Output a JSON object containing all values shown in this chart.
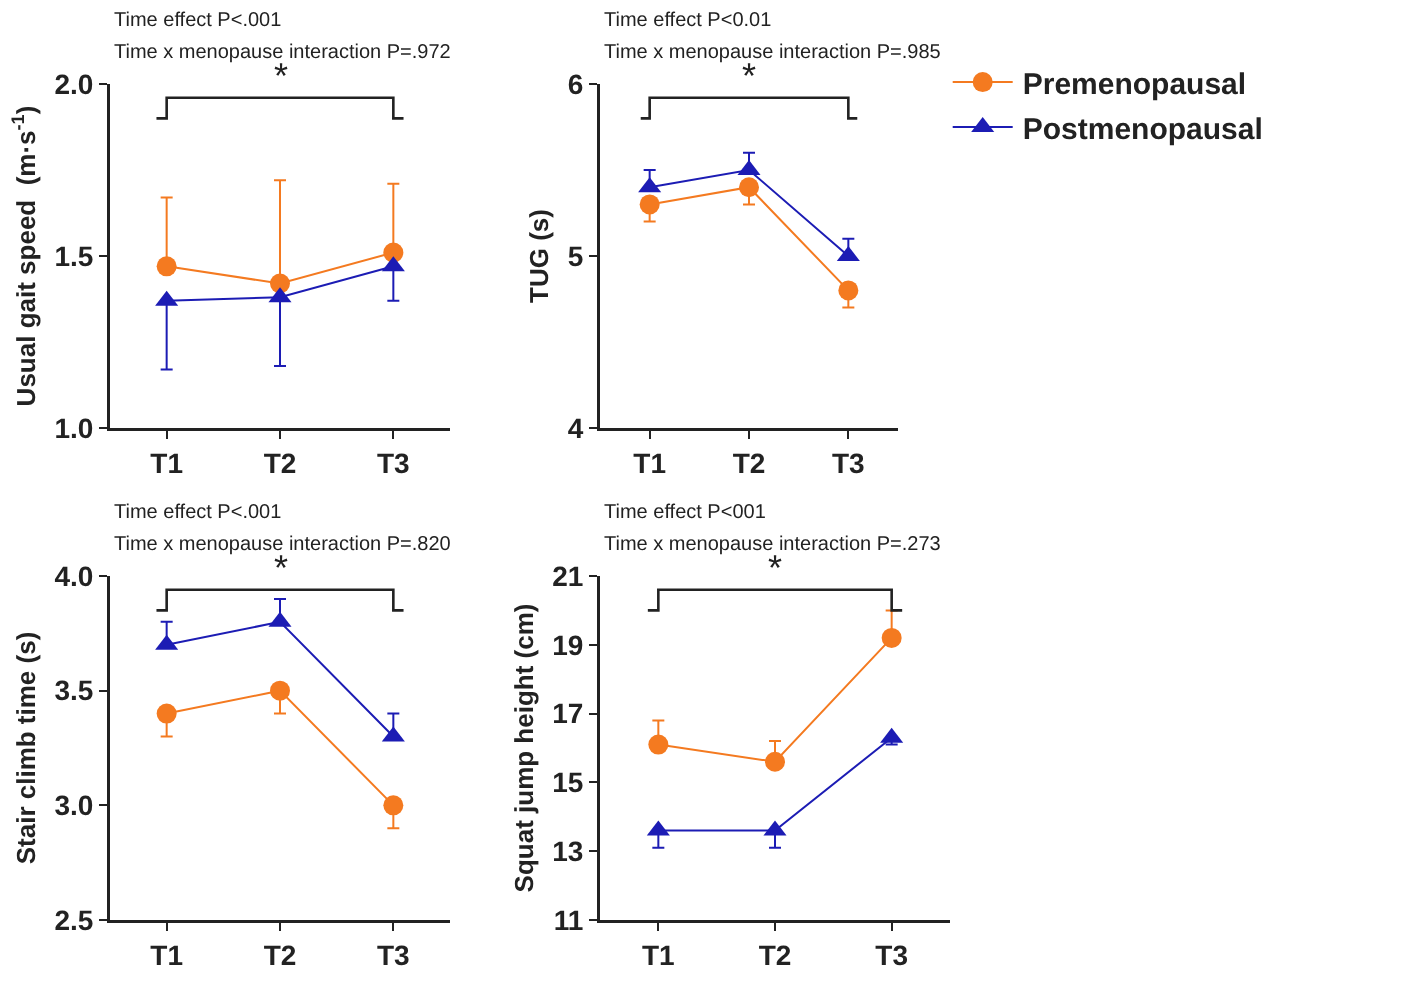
{
  "chart_data": [
    {
      "type": "line",
      "title": "Time effect P<.001",
      "subtitle": "Time x menopause interaction P=.972",
      "ylabel": "Usual gait speed  (m·s$^{-1}$)",
      "annotations": [
        "*"
      ],
      "categories": [
        "T1",
        "T2",
        "T3"
      ],
      "ylim": [
        1,
        2
      ],
      "yticks": [
        {
          "value": 1,
          "label": "1.0"
        },
        1.5,
        {
          "value": 2,
          "label": "2.0"
        }
      ],
      "grid": false,
      "legend": false,
      "series": [
        {
          "color": "#f47a20",
          "marker": "circle",
          "values": [
            1.47,
            1.42,
            1.51
          ],
          "errors": [
            [
              1.47,
              1.67
            ],
            [
              1.42,
              1.72
            ],
            [
              1.51,
              1.71
            ]
          ]
        },
        {
          "color": "#1c1cb4",
          "marker": "triangle",
          "values": [
            1.37,
            1.38,
            1.47
          ],
          "errors": [
            [
              1.17,
              1.37
            ],
            [
              1.18,
              1.38
            ],
            [
              1.37,
              1.47
            ]
          ]
        }
      ]
    },
    {
      "type": "line",
      "title": "Time effect P<0.01",
      "subtitle": "Time x menopause interaction P=.985",
      "ylabel": "TUG (s)",
      "annotations": [
        "*"
      ],
      "categories": [
        "T1",
        "T2",
        "T3"
      ],
      "ylim": [
        4,
        6
      ],
      "yticks": [
        4,
        5,
        6
      ],
      "grid": false,
      "legend": "right",
      "series": [
        {
          "name": "Premenopausal",
          "color": "#f47a20",
          "marker": "circle",
          "values": [
            5.3,
            5.4,
            4.8
          ],
          "errors": [
            [
              5.2,
              5.3
            ],
            [
              5.3,
              5.4
            ],
            [
              4.7,
              4.8
            ]
          ]
        },
        {
          "name": "Postmenopausal",
          "color": "#1c1cb4",
          "marker": "triangle",
          "values": [
            5.4,
            5.5,
            5.0
          ],
          "errors": [
            [
              5.4,
              5.5
            ],
            [
              5.5,
              5.6
            ],
            [
              5.0,
              5.1
            ]
          ]
        }
      ]
    },
    {
      "type": "line",
      "title": "Time effect P<.001",
      "subtitle": "Time x menopause interaction P=.820",
      "ylabel": "Stair climb time (s)",
      "annotations": [
        "*"
      ],
      "categories": [
        "T1",
        "T2",
        "T3"
      ],
      "ylim": [
        2.5,
        4
      ],
      "yticks": [
        2.5,
        {
          "value": 3,
          "label": "3.0"
        },
        3.5,
        {
          "value": 4,
          "label": "4.0"
        }
      ],
      "grid": false,
      "legend": false,
      "series": [
        {
          "color": "#f47a20",
          "marker": "circle",
          "values": [
            3.4,
            3.5,
            3.0
          ],
          "errors": [
            [
              3.3,
              3.4
            ],
            [
              3.4,
              3.5
            ],
            [
              2.9,
              3.0
            ]
          ]
        },
        {
          "color": "#1c1cb4",
          "marker": "triangle",
          "values": [
            3.7,
            3.8,
            3.3
          ],
          "errors": [
            [
              3.7,
              3.8
            ],
            [
              3.8,
              3.9
            ],
            [
              3.3,
              3.4
            ]
          ]
        }
      ]
    },
    {
      "type": "line",
      "title": "Time effect P<001",
      "subtitle": "Time x menopause interaction P=.273",
      "ylabel": "Squat jump height (cm)",
      "annotations": [
        "*"
      ],
      "categories": [
        "T1",
        "T2",
        "T3"
      ],
      "ylim": [
        11,
        21
      ],
      "yticks": [
        11,
        13,
        15,
        17,
        19,
        21
      ],
      "grid": false,
      "legend": false,
      "series": [
        {
          "color": "#f47a20",
          "marker": "circle",
          "values": [
            16.1,
            15.6,
            19.2
          ],
          "errors": [
            [
              16.1,
              16.8
            ],
            [
              15.6,
              16.2
            ],
            [
              19.2,
              20.0
            ]
          ]
        },
        {
          "color": "#1c1cb4",
          "marker": "triangle",
          "values": [
            13.6,
            13.6,
            16.3
          ],
          "errors": [
            [
              13.1,
              13.6
            ],
            [
              13.1,
              13.6
            ],
            [
              16.1,
              16.3
            ]
          ]
        }
      ]
    }
  ]
}
